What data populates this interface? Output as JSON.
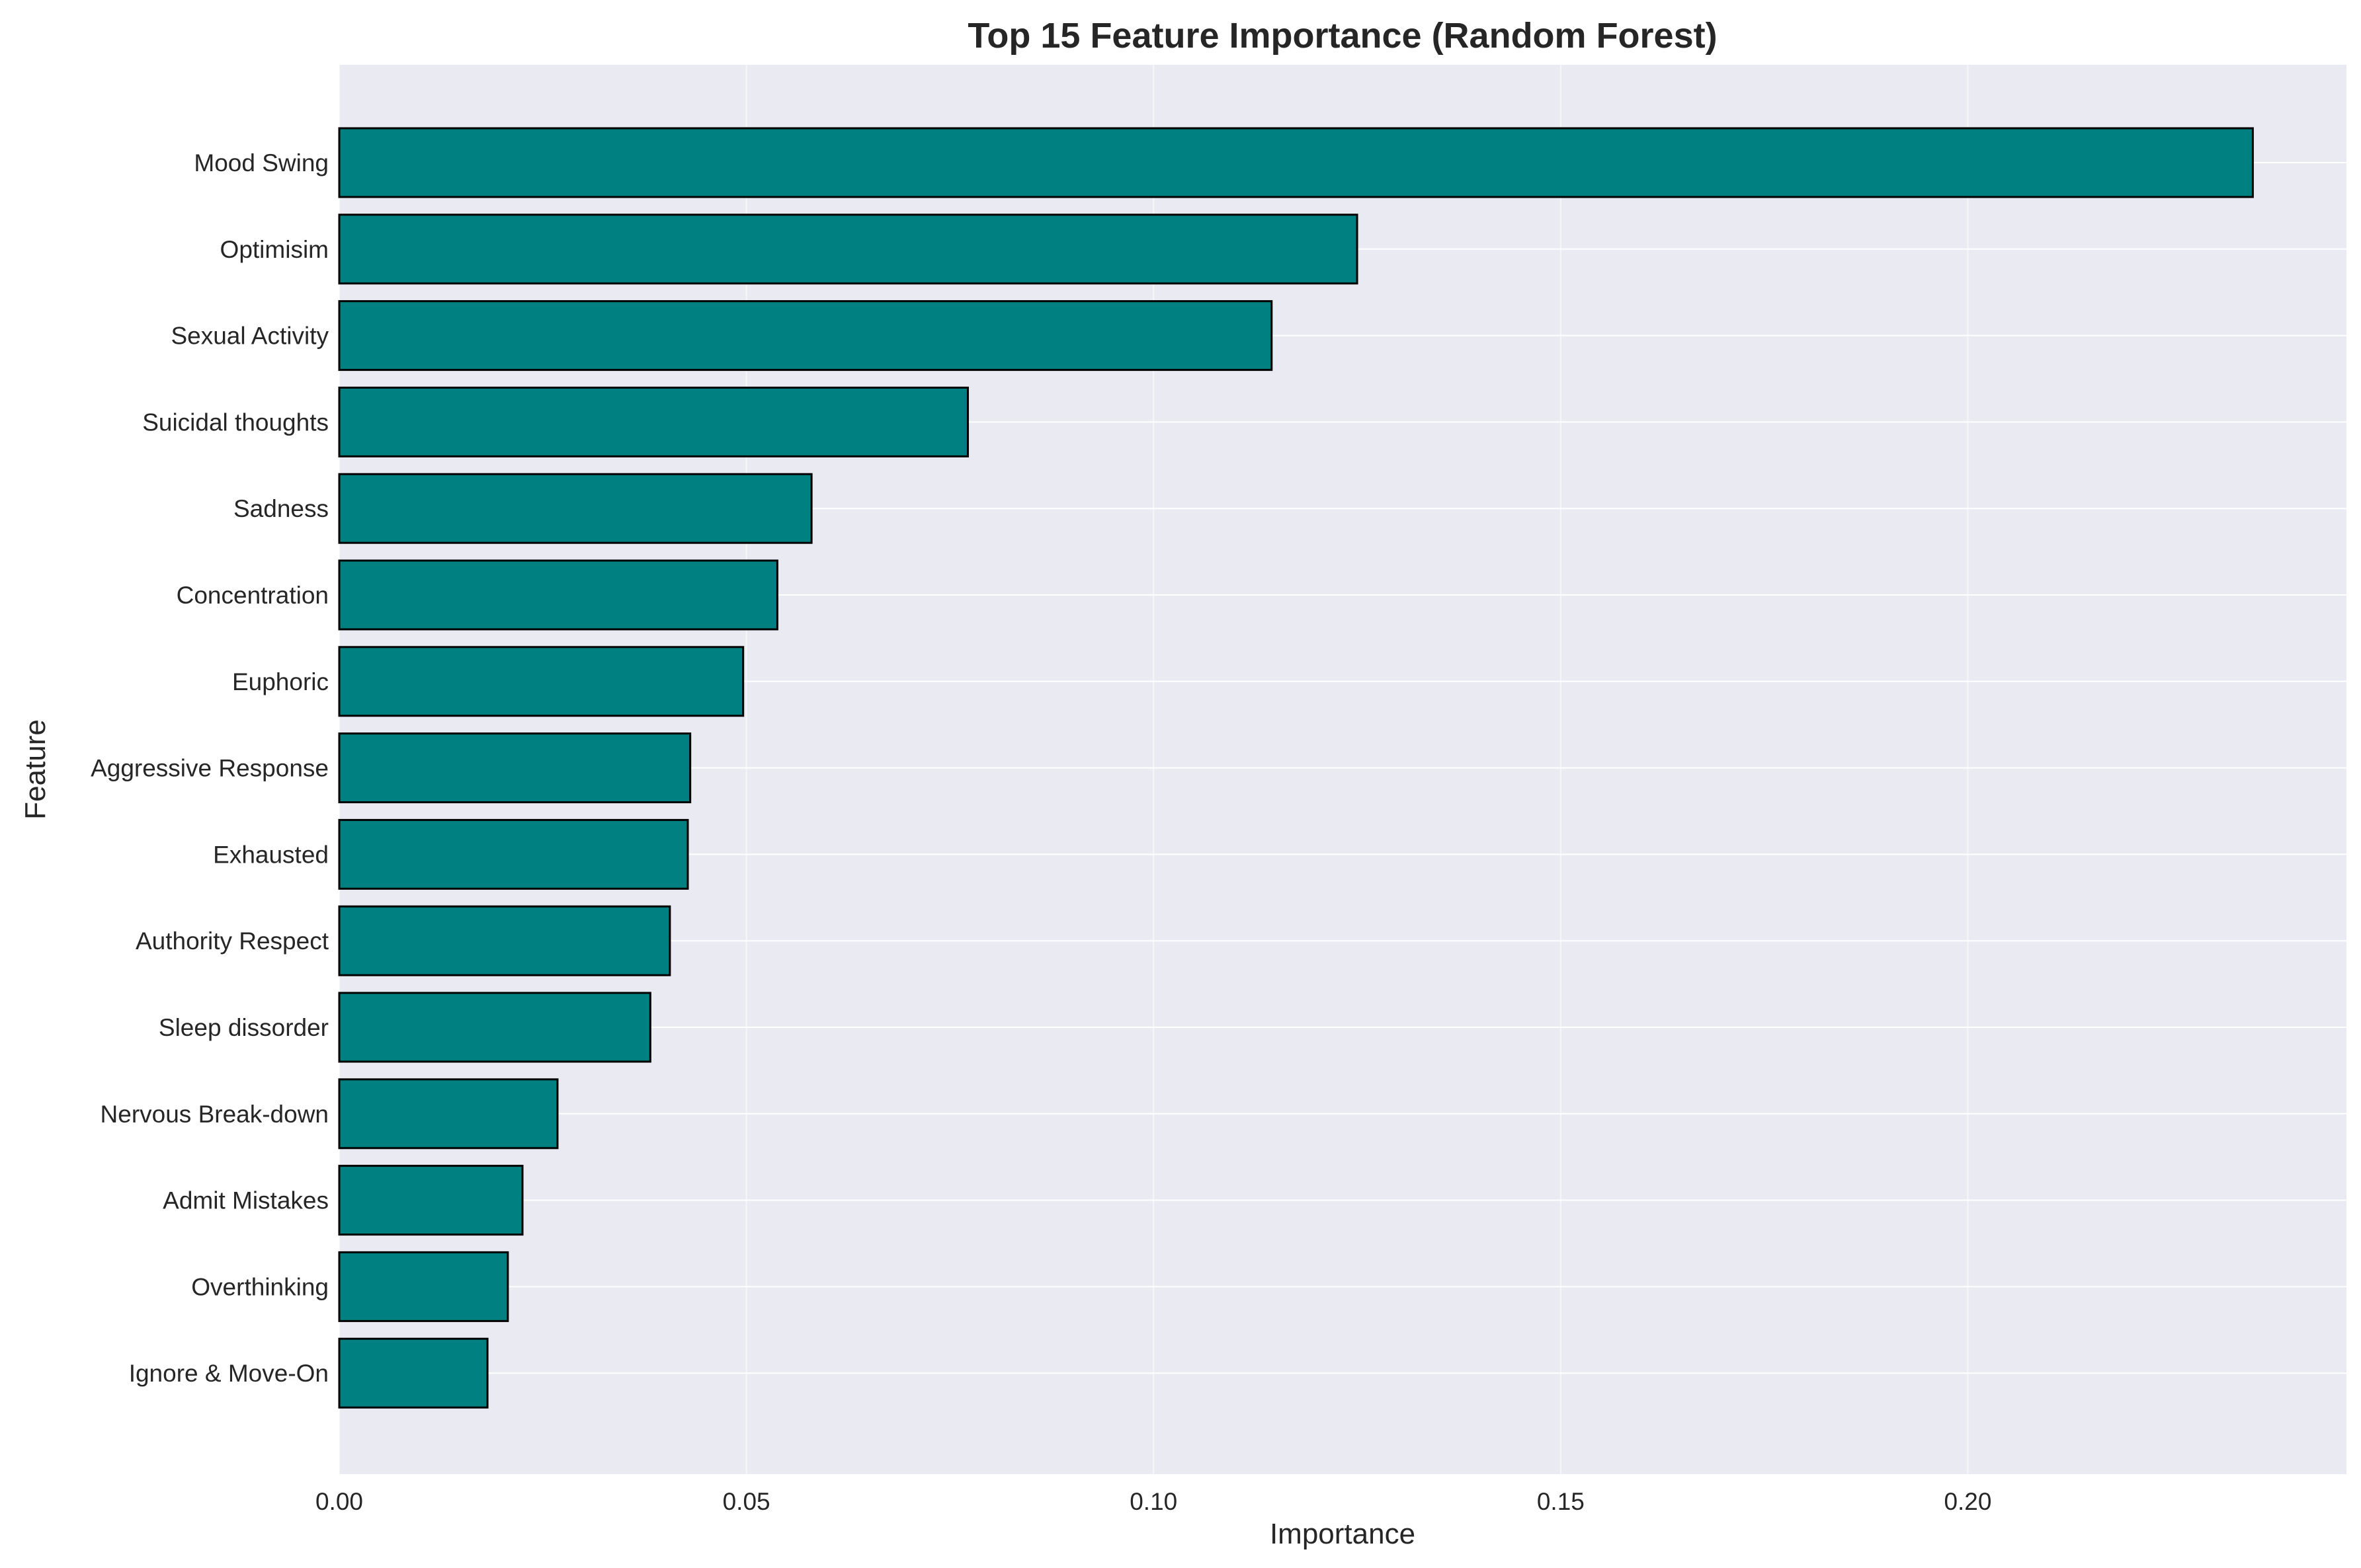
{
  "chart_data": {
    "type": "bar",
    "orientation": "horizontal",
    "title": "Top 15 Feature Importance (Random Forest)",
    "xlabel": "Importance",
    "ylabel": "Feature",
    "categories": [
      "Mood Swing",
      "Optimisim",
      "Sexual Activity",
      "Suicidal thoughts",
      "Sadness",
      "Concentration",
      "Euphoric",
      "Aggressive Response",
      "Exhausted",
      "Authority Respect",
      "Sleep dissorder",
      "Nervous Break-down",
      "Admit Mistakes",
      "Overthinking",
      "Ignore & Move-On"
    ],
    "values": [
      0.235,
      0.125,
      0.1145,
      0.0772,
      0.058,
      0.0538,
      0.0496,
      0.0431,
      0.0428,
      0.0406,
      0.0382,
      0.0268,
      0.0225,
      0.0207,
      0.0182
    ],
    "xlim": [
      0,
      0.2465
    ],
    "xticks": [
      0.0,
      0.05,
      0.1,
      0.15,
      0.2
    ],
    "xtick_labels": [
      "0.00",
      "0.05",
      "0.10",
      "0.15",
      "0.20"
    ],
    "grid": true,
    "legend": "none",
    "colors": {
      "bar_fill": "#008080",
      "bar_edge": "#000000",
      "plot_background": "#EAEAF2",
      "grid": "#FFFFFF",
      "text": "#262626"
    }
  }
}
